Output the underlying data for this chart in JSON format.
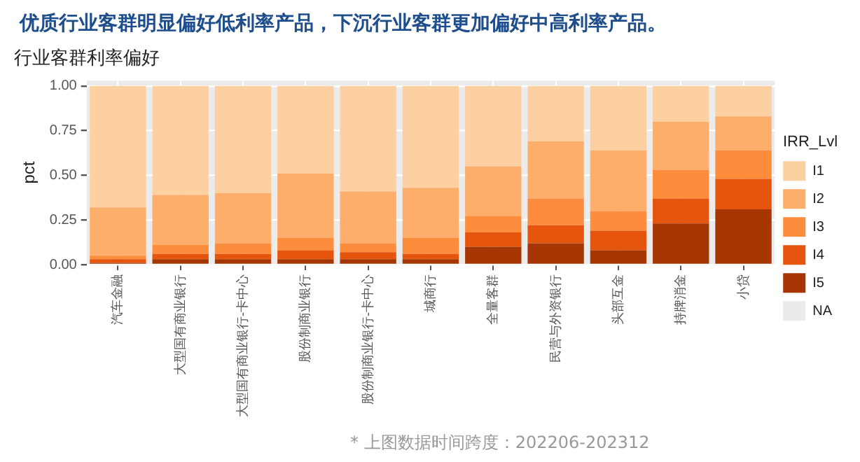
{
  "chart_data": {
    "type": "bar",
    "title": "优质行业客群明显偏好低利率产品，下沉行业客群更加偏好中高利率产品。",
    "subtitle": "行业客群利率偏好",
    "ylabel": "pct",
    "legend_title": "IRR_Lvl",
    "annotations": [
      "* 上图数据时间跨度：202206-202312"
    ],
    "categories": [
      "汽车金融",
      "大型国有商业银行",
      "大型国有商业银行-卡中心",
      "股份制商业银行",
      "股份制商业银行-卡中心",
      "城商行",
      "全量客群",
      "民营与外资银行",
      "头部互金",
      "持牌消金",
      "小贷"
    ],
    "stacked": true,
    "ylim": [
      0,
      1.03
    ],
    "yticks": [
      {
        "value": 0,
        "label": "0.00"
      },
      {
        "value": 0.25,
        "label": "0.25"
      },
      {
        "value": 0.5,
        "label": "0.50"
      },
      {
        "value": 0.75,
        "label": "0.75"
      },
      {
        "value": 1,
        "label": "1.00"
      }
    ],
    "grid": true,
    "legend": "right",
    "series": [
      {
        "name": "NA",
        "color": "#ebebeb",
        "values": [
          0,
          0,
          0,
          0,
          0,
          0,
          0,
          0,
          0,
          0,
          0
        ]
      },
      {
        "name": "I5",
        "color": "#a63603",
        "values": [
          0.01,
          0.03,
          0.03,
          0.03,
          0.03,
          0.03,
          0.1,
          0.12,
          0.08,
          0.23,
          0.31
        ]
      },
      {
        "name": "I4",
        "color": "#e6550d",
        "values": [
          0.02,
          0.03,
          0.03,
          0.05,
          0.04,
          0.03,
          0.08,
          0.1,
          0.11,
          0.14,
          0.17
        ]
      },
      {
        "name": "I3",
        "color": "#fd8d3c",
        "values": [
          0.02,
          0.05,
          0.06,
          0.07,
          0.05,
          0.09,
          0.09,
          0.15,
          0.11,
          0.16,
          0.16
        ]
      },
      {
        "name": "I2",
        "color": "#fdae6b",
        "values": [
          0.27,
          0.28,
          0.28,
          0.36,
          0.29,
          0.28,
          0.28,
          0.32,
          0.34,
          0.27,
          0.19
        ]
      },
      {
        "name": "I1",
        "color": "#fdd0a2",
        "values": [
          0.68,
          0.61,
          0.6,
          0.49,
          0.59,
          0.57,
          0.45,
          0.31,
          0.36,
          0.2,
          0.17
        ]
      }
    ]
  }
}
